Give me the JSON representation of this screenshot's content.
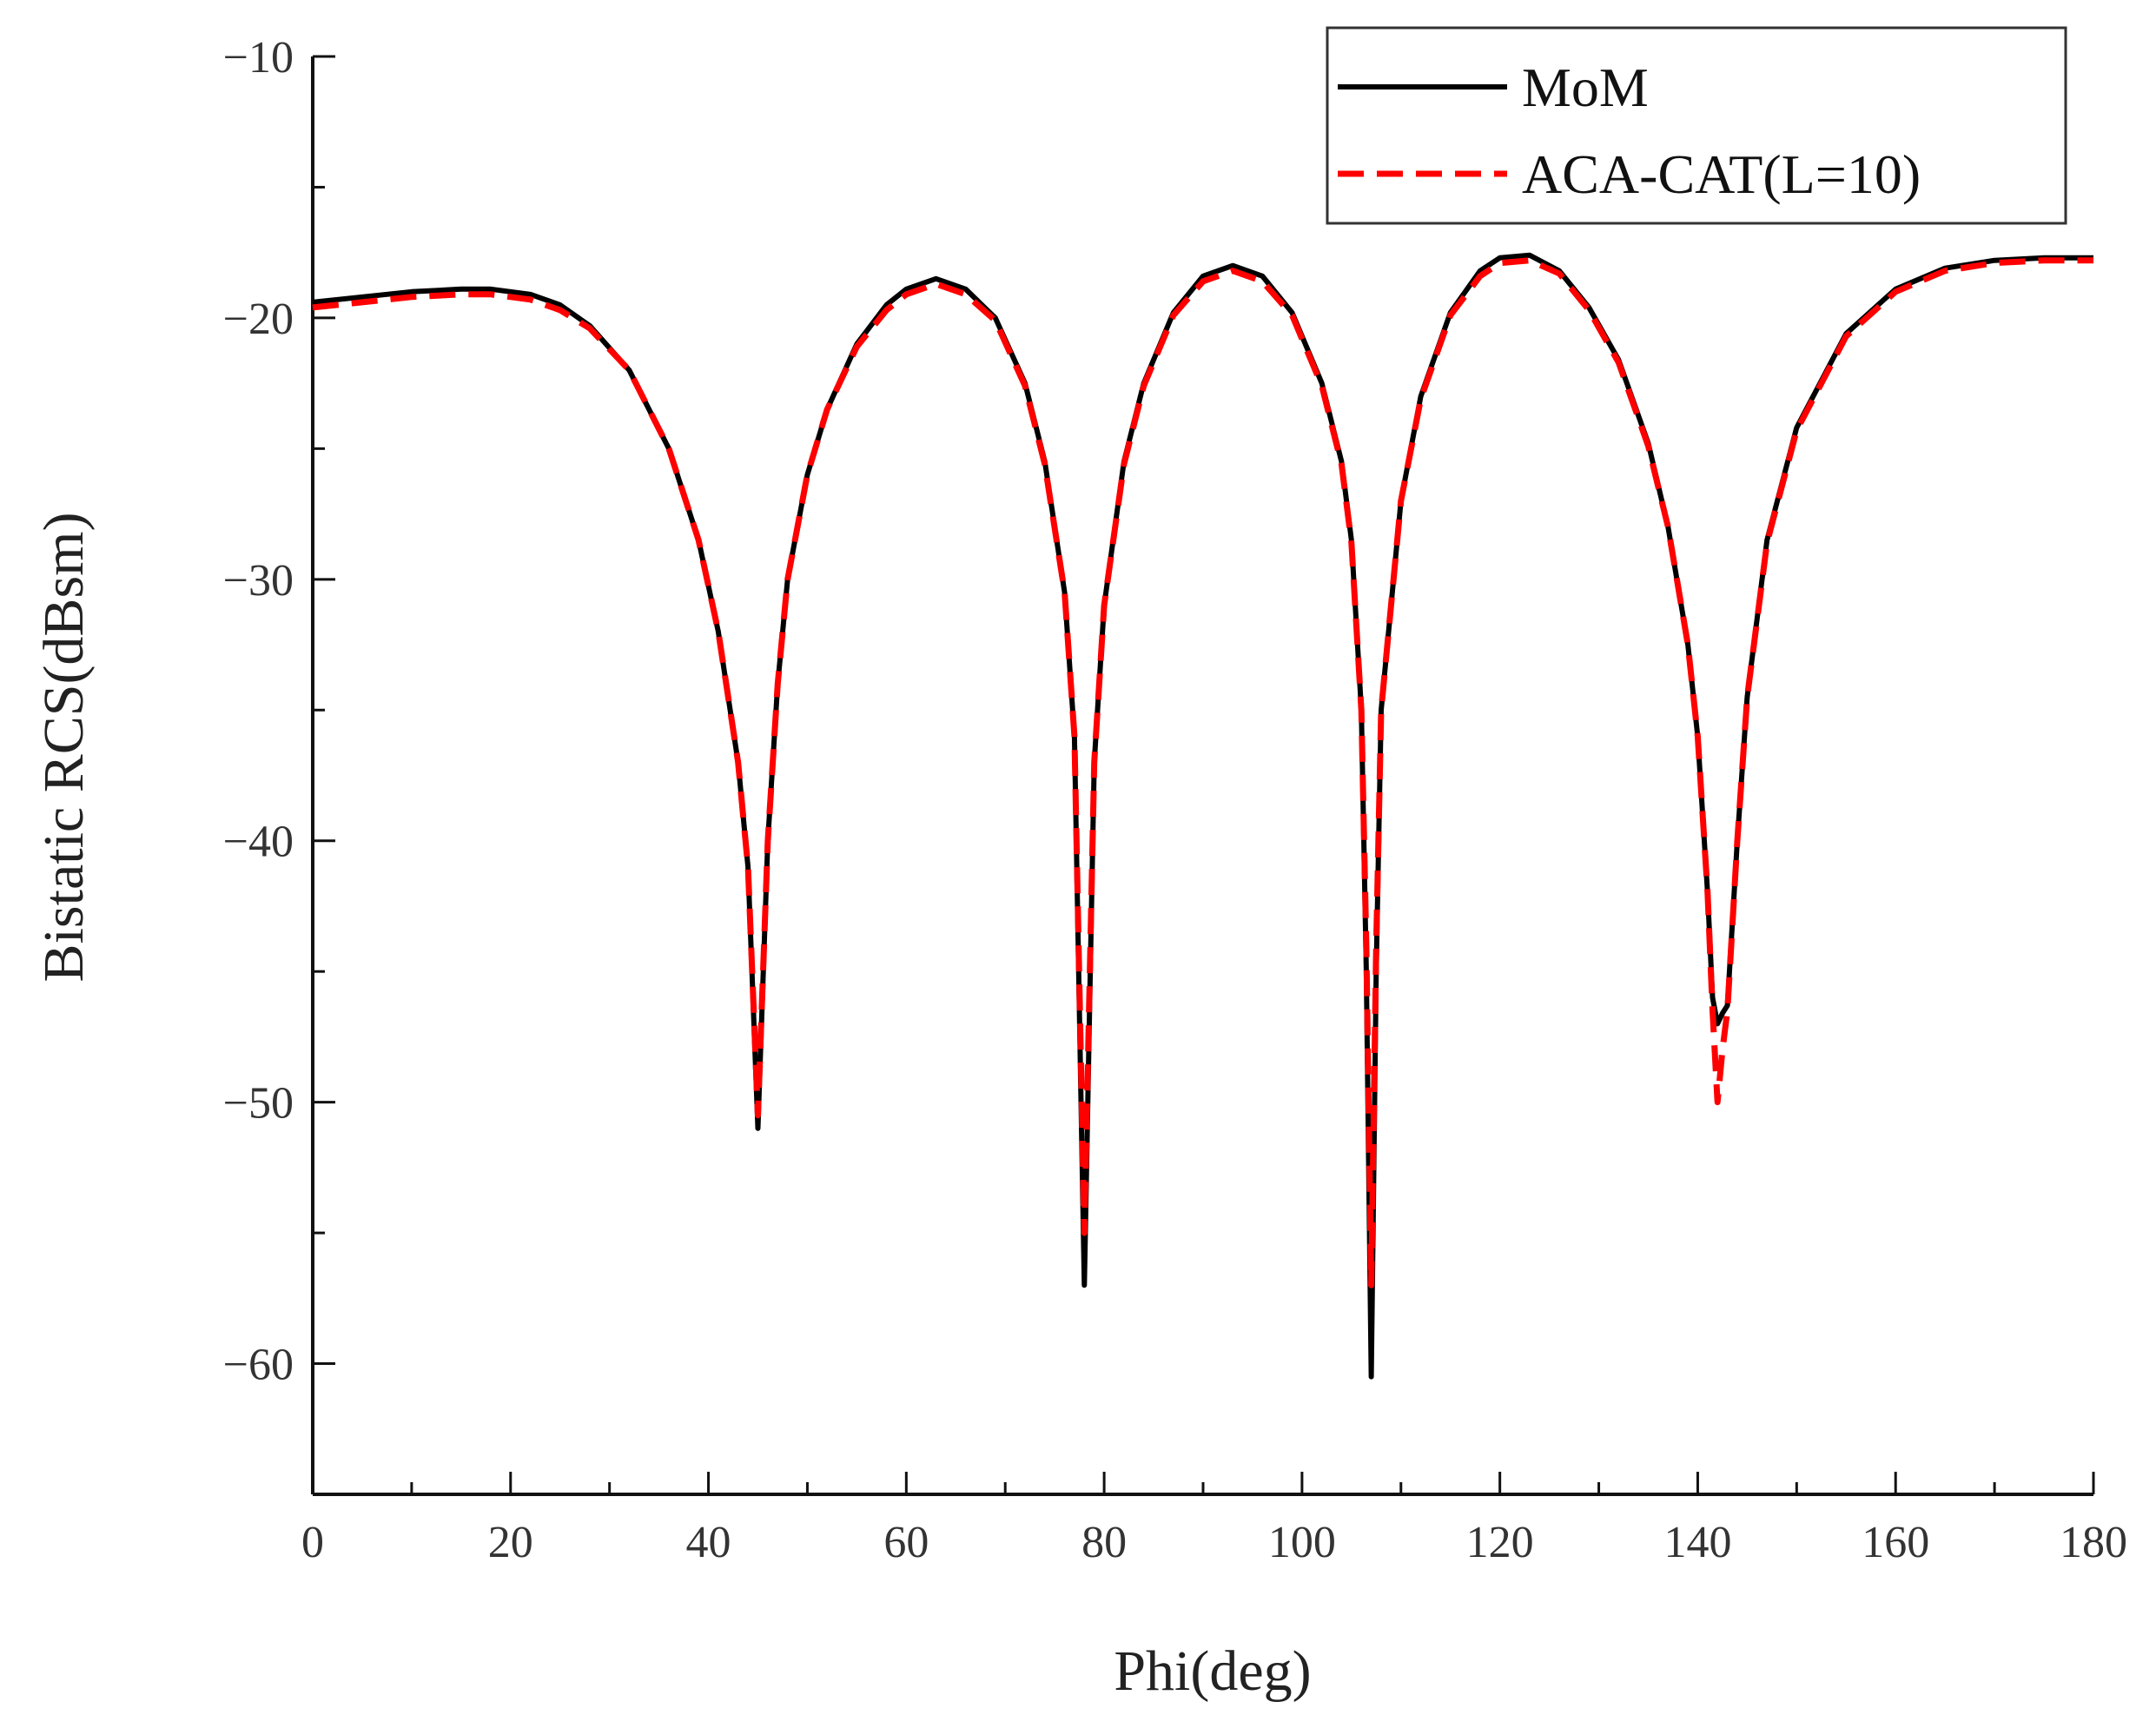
{
  "chart_data": {
    "type": "line",
    "title": "",
    "xlabel": "Phi(deg)",
    "ylabel": "Bistatic RCS(dBsm)",
    "xlim": [
      0,
      180
    ],
    "ylim": [
      -65,
      -10
    ],
    "xticks": [
      0,
      20,
      40,
      60,
      80,
      100,
      120,
      140,
      160,
      180
    ],
    "xtick_labels": [
      "0",
      "20",
      "40",
      "60",
      "80",
      "100",
      "120",
      "140",
      "160",
      "180"
    ],
    "yticks": [
      -10,
      -20,
      -30,
      -40,
      -50,
      -60
    ],
    "ytick_labels": [
      "−10",
      "−20",
      "−30",
      "−40",
      "−50",
      "−60"
    ],
    "grid": false,
    "legend_position": "top-right",
    "series": [
      {
        "name": "MoM",
        "color": "#000000",
        "style": "solid",
        "x": [
          0,
          5,
          10,
          15,
          18,
          22,
          25,
          28,
          32,
          36,
          39,
          41,
          43,
          44,
          45,
          46,
          47,
          48,
          50,
          52,
          55,
          58,
          60,
          63,
          66,
          69,
          72,
          74,
          76,
          77,
          78,
          79,
          80,
          82,
          84,
          87,
          90,
          93,
          96,
          99,
          102,
          104,
          105,
          106,
          106.5,
          107,
          107.5,
          108,
          110,
          112,
          115,
          118,
          120,
          123,
          126,
          129,
          132,
          135,
          137,
          139,
          140,
          141,
          141.5,
          142,
          142.5,
          143,
          144,
          145,
          147,
          150,
          155,
          160,
          165,
          170,
          175,
          180
        ],
        "y": [
          -19.4,
          -19.2,
          -19.0,
          -18.9,
          -18.9,
          -19.1,
          -19.5,
          -20.3,
          -22.0,
          -25.0,
          -28.5,
          -32.0,
          -37.0,
          -41.0,
          -51.0,
          -40.0,
          -34.0,
          -30.0,
          -26.0,
          -23.5,
          -21.0,
          -19.5,
          -18.9,
          -18.5,
          -18.9,
          -20.0,
          -22.5,
          -25.5,
          -30.5,
          -36.0,
          -57.0,
          -37.0,
          -31.0,
          -25.5,
          -22.5,
          -19.8,
          -18.4,
          -18.0,
          -18.4,
          -19.8,
          -22.5,
          -25.5,
          -28.5,
          -35.0,
          -45.0,
          -60.5,
          -45.0,
          -35.0,
          -27.0,
          -23.0,
          -19.8,
          -18.2,
          -17.7,
          -17.6,
          -18.2,
          -19.6,
          -21.6,
          -24.8,
          -28.0,
          -32.5,
          -36.0,
          -42.0,
          -46.0,
          -47.0,
          -46.6,
          -46.3,
          -40.0,
          -34.5,
          -28.5,
          -24.2,
          -20.6,
          -18.9,
          -18.1,
          -17.8,
          -17.7,
          -17.7
        ]
      },
      {
        "name": "ACA-CAT(L=10)",
        "color": "#ff0000",
        "style": "dashed",
        "x": [
          0,
          5,
          10,
          15,
          18,
          22,
          25,
          28,
          32,
          36,
          39,
          41,
          43,
          44,
          45,
          46,
          47,
          48,
          50,
          52,
          55,
          58,
          60,
          63,
          66,
          69,
          72,
          74,
          76,
          77,
          78,
          79,
          80,
          82,
          84,
          87,
          90,
          93,
          96,
          99,
          102,
          104,
          105,
          106,
          106.5,
          107,
          107.5,
          108,
          110,
          112,
          115,
          118,
          120,
          123,
          126,
          129,
          132,
          135,
          137,
          139,
          140,
          141,
          141.5,
          142,
          142.5,
          143,
          144,
          145,
          147,
          150,
          155,
          160,
          165,
          170,
          175,
          180
        ],
        "y": [
          -19.6,
          -19.4,
          -19.2,
          -19.1,
          -19.1,
          -19.3,
          -19.7,
          -20.4,
          -22.0,
          -25.0,
          -28.5,
          -32.0,
          -37.0,
          -41.0,
          -50.5,
          -40.0,
          -34.0,
          -30.0,
          -26.0,
          -23.5,
          -21.1,
          -19.7,
          -19.1,
          -18.7,
          -19.1,
          -20.1,
          -22.6,
          -25.6,
          -30.5,
          -36.0,
          -55.0,
          -37.0,
          -31.0,
          -25.6,
          -22.6,
          -19.9,
          -18.6,
          -18.2,
          -18.6,
          -19.9,
          -22.6,
          -25.6,
          -28.6,
          -35.0,
          -44.0,
          -57.0,
          -44.0,
          -35.0,
          -27.0,
          -23.1,
          -19.9,
          -18.4,
          -17.9,
          -17.8,
          -18.3,
          -19.7,
          -21.7,
          -24.9,
          -28.0,
          -32.5,
          -36.0,
          -42.0,
          -46.5,
          -50.0,
          -48.0,
          -46.5,
          -40.0,
          -34.5,
          -28.6,
          -24.3,
          -20.7,
          -19.0,
          -18.2,
          -17.9,
          -17.8,
          -17.8
        ]
      }
    ]
  }
}
